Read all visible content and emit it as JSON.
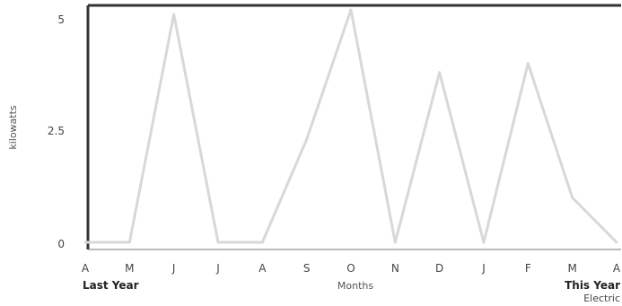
{
  "chart_data": {
    "type": "line",
    "categories": [
      "A",
      "M",
      "J",
      "J",
      "A",
      "S",
      "O",
      "N",
      "D",
      "J",
      "F",
      "M",
      "A"
    ],
    "series": [
      {
        "name": "Electric",
        "values": [
          0,
          0,
          5.1,
          0,
          0,
          2.3,
          5.2,
          0,
          3.8,
          0,
          4.0,
          1.0,
          0
        ]
      }
    ],
    "xlabel": "Months",
    "ylabel": "kilowatts",
    "y_ticks": [
      "0",
      "2.5",
      "5"
    ],
    "ylim": [
      0,
      5.3
    ],
    "grid": false,
    "period_start_label": "Last Year",
    "period_end_label": "This Year",
    "series_color": "#d8d8d8",
    "legend_placement": "bottom-right"
  }
}
